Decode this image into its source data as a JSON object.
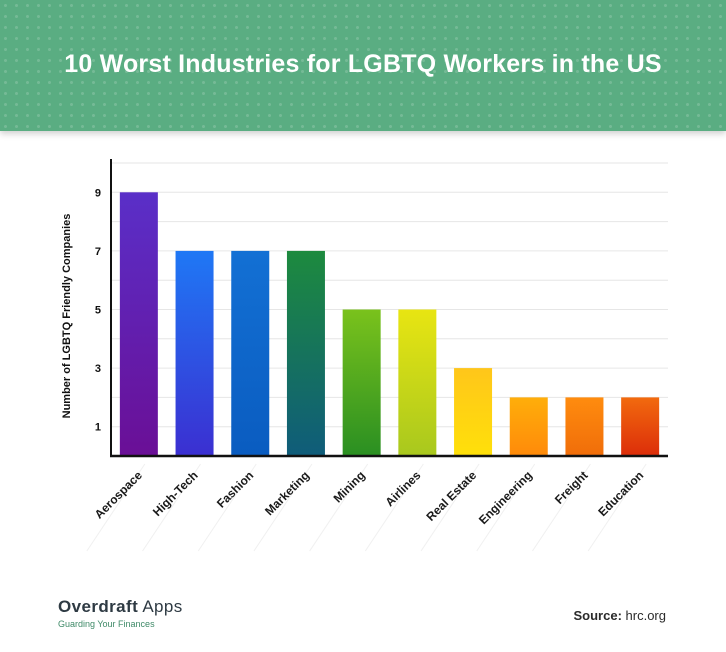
{
  "header": {
    "title": "10 Worst Industries for LGBTQ Workers in the US"
  },
  "chart_data": {
    "type": "bar",
    "title": "10 Worst Industries for LGBTQ Workers in the US",
    "xlabel": "",
    "ylabel": "Number of LGBTQ Friendly Companies",
    "ylim": [
      0,
      10
    ],
    "yticks": [
      1,
      3,
      5,
      7,
      9
    ],
    "grid": true,
    "categories": [
      "Aerospace",
      "High-Tech",
      "Fashion",
      "Marketing",
      "Mining",
      "Airlines",
      "Real Estate",
      "Engineering",
      "Freight",
      "Education"
    ],
    "values": [
      9,
      7,
      7,
      7,
      5,
      5,
      3,
      2,
      2,
      2
    ],
    "colors": [
      [
        "#5a2fc8",
        "#6a0f96"
      ],
      [
        "#1f78f5",
        "#3b2fd1"
      ],
      [
        "#1370d4",
        "#0a5cc0"
      ],
      [
        "#1d8a3e",
        "#0f5c7a"
      ],
      [
        "#7ac21c",
        "#2a8f22"
      ],
      [
        "#e8e512",
        "#a8c81e"
      ],
      [
        "#ffc61a",
        "#ffe00a"
      ],
      [
        "#ffae0a",
        "#ff8a0a"
      ],
      [
        "#ff8c0e",
        "#f06d0a"
      ],
      [
        "#f26a0e",
        "#dc2d0a"
      ]
    ]
  },
  "footer": {
    "brand_first": "Overdraft",
    "brand_second": "Apps",
    "tagline": "Guarding Your Finances",
    "source_label": "Source:",
    "source_value": "hrc.org"
  }
}
